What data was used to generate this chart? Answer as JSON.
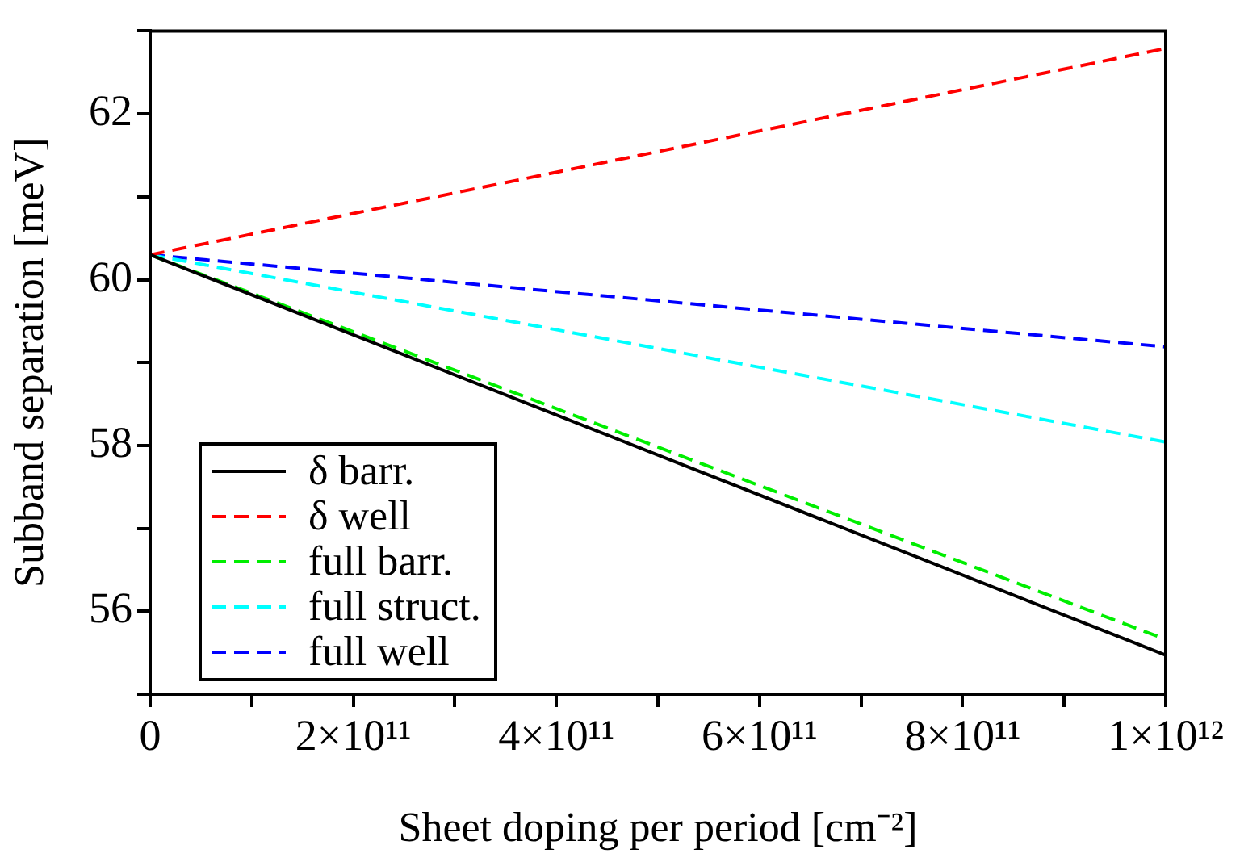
{
  "chart_data": {
    "type": "line",
    "xlabel": "Sheet doping per period [cm⁻²]",
    "ylabel": "Subband separation [meV]",
    "x": [
      0,
      1000000000000
    ],
    "series": [
      {
        "name": "δ barr.",
        "color": "#000000",
        "line_style": "solid",
        "values": [
          60.3,
          55.47
        ]
      },
      {
        "name": "δ well",
        "color": "#ff0000",
        "line_style": "dashed",
        "values": [
          60.3,
          62.79
        ]
      },
      {
        "name": "full barr.",
        "color": "#00ee00",
        "line_style": "dashed",
        "values": [
          60.3,
          55.66
        ]
      },
      {
        "name": "full struct.",
        "color": "#00ffff",
        "line_style": "dashed",
        "values": [
          60.3,
          58.04
        ]
      },
      {
        "name": "full well",
        "color": "#0000ff",
        "line_style": "dashed",
        "values": [
          60.3,
          59.19
        ]
      }
    ],
    "xlim": [
      0,
      1000000000000
    ],
    "xticks": [
      0,
      {
        "value": 100000000000,
        "label": null
      },
      {
        "value": 200000000000,
        "label": "2×10¹¹"
      },
      {
        "value": 300000000000,
        "label": null
      },
      {
        "value": 400000000000,
        "label": "4×10¹¹"
      },
      {
        "value": 500000000000,
        "label": null
      },
      {
        "value": 600000000000,
        "label": "6×10¹¹"
      },
      {
        "value": 700000000000,
        "label": null
      },
      {
        "value": 800000000000,
        "label": "8×10¹¹"
      },
      {
        "value": 900000000000,
        "label": null
      },
      {
        "value": 1000000000000,
        "label": "1×10¹²"
      }
    ],
    "ylim": [
      55,
      63
    ],
    "yticks": [
      {
        "value": 55,
        "label": null
      },
      56,
      {
        "value": 57,
        "label": null
      },
      58,
      {
        "value": 59,
        "label": null
      },
      60,
      {
        "value": 61,
        "label": null
      },
      62,
      {
        "value": 63,
        "label": null
      }
    ],
    "grid": false,
    "legend": "bottom left",
    "marker": "none"
  }
}
